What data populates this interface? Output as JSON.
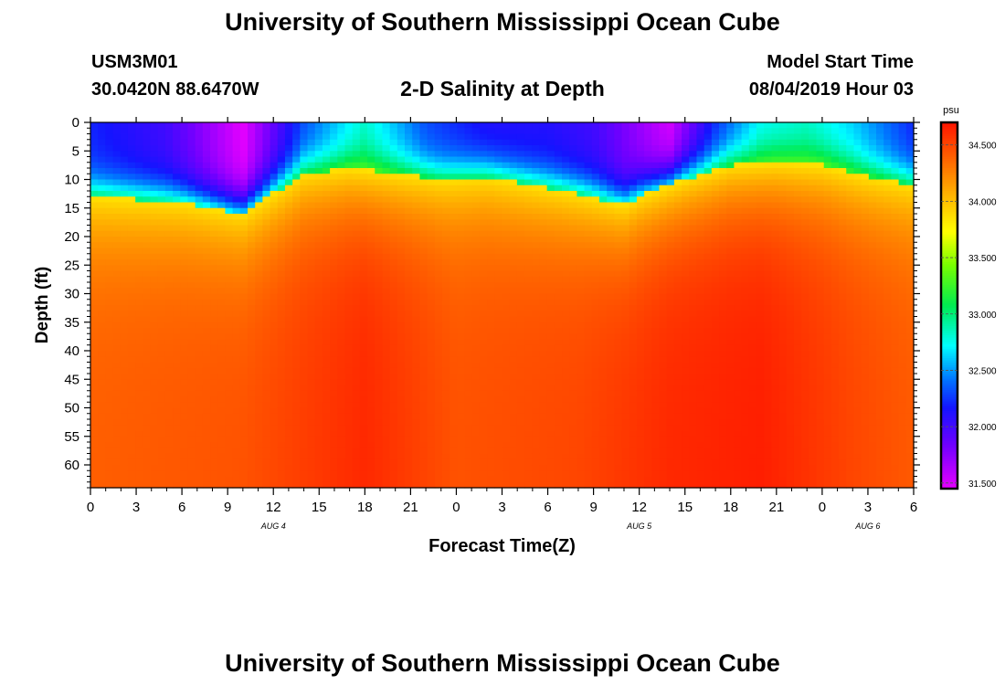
{
  "header": {
    "title": "University of Southern Mississippi Ocean Cube",
    "station": "USM3M01",
    "location": "30.0420N 88.6470W",
    "plot_title": "2-D Salinity at Depth",
    "start_label": "Model Start Time",
    "start_value": "08/04/2019 Hour 03"
  },
  "footer": {
    "title": "University of Southern Mississippi Ocean Cube"
  },
  "chart_data": {
    "type": "heatmap",
    "title": "2-D Salinity at Depth",
    "xlabel": "Forecast Time(Z)",
    "ylabel": "Depth (ft)",
    "x_range_hours": [
      0,
      54
    ],
    "y_range_ft": [
      0,
      64
    ],
    "x_tick_labels": [
      "0",
      "3",
      "6",
      "9",
      "12",
      "15",
      "18",
      "21",
      "0",
      "3",
      "6",
      "9",
      "12",
      "15",
      "18",
      "21",
      "0",
      "3",
      "6"
    ],
    "y_tick_labels": [
      "0",
      "5",
      "10",
      "15",
      "20",
      "25",
      "30",
      "35",
      "40",
      "45",
      "50",
      "55",
      "60"
    ],
    "date_labels": [
      {
        "text": "AUG 4",
        "hour": 12
      },
      {
        "text": "AUG 5",
        "hour": 36
      },
      {
        "text": "AUG 6",
        "hour": 51
      }
    ],
    "colorbar": {
      "unit": "psu",
      "min": 31.45,
      "max": 34.7,
      "tick_labels": [
        "34.500",
        "34.000",
        "33.500",
        "33.000",
        "32.500",
        "32.000",
        "31.500"
      ]
    },
    "halocline_depth_ft": [
      {
        "hour": 0,
        "depth": 13.0
      },
      {
        "hour": 3,
        "depth": 13.5
      },
      {
        "hour": 6,
        "depth": 14.0
      },
      {
        "hour": 8,
        "depth": 15.0
      },
      {
        "hour": 10,
        "depth": 16.0
      },
      {
        "hour": 12,
        "depth": 12.5
      },
      {
        "hour": 14,
        "depth": 9.0
      },
      {
        "hour": 17,
        "depth": 8.0
      },
      {
        "hour": 20,
        "depth": 9.0
      },
      {
        "hour": 23,
        "depth": 10.0
      },
      {
        "hour": 26,
        "depth": 9.5
      },
      {
        "hour": 29,
        "depth": 11.0
      },
      {
        "hour": 32,
        "depth": 12.5
      },
      {
        "hour": 35,
        "depth": 14.5
      },
      {
        "hour": 36,
        "depth": 13.0
      },
      {
        "hour": 39,
        "depth": 10.0
      },
      {
        "hour": 42,
        "depth": 7.5
      },
      {
        "hour": 45,
        "depth": 7.0
      },
      {
        "hour": 48,
        "depth": 7.5
      },
      {
        "hour": 51,
        "depth": 9.5
      },
      {
        "hour": 54,
        "depth": 11.0
      }
    ],
    "surface_min_psu": [
      {
        "hour": 0,
        "value": 32.2
      },
      {
        "hour": 5,
        "value": 32.0
      },
      {
        "hour": 10,
        "value": 31.45
      },
      {
        "hour": 14,
        "value": 32.3
      },
      {
        "hour": 18,
        "value": 32.8
      },
      {
        "hour": 22,
        "value": 32.3
      },
      {
        "hour": 26,
        "value": 32.1
      },
      {
        "hour": 30,
        "value": 32.1
      },
      {
        "hour": 33,
        "value": 32.0
      },
      {
        "hour": 38,
        "value": 31.5
      },
      {
        "hour": 41,
        "value": 32.2
      },
      {
        "hour": 44,
        "value": 32.7
      },
      {
        "hour": 47,
        "value": 32.8
      },
      {
        "hour": 50,
        "value": 32.6
      },
      {
        "hour": 54,
        "value": 32.2
      }
    ],
    "deep_max_psu": [
      {
        "hour": 0,
        "value": 34.4
      },
      {
        "hour": 10,
        "value": 34.45
      },
      {
        "hour": 18,
        "value": 34.62
      },
      {
        "hour": 24,
        "value": 34.45
      },
      {
        "hour": 32,
        "value": 34.5
      },
      {
        "hour": 38,
        "value": 34.62
      },
      {
        "hour": 44,
        "value": 34.66
      },
      {
        "hour": 50,
        "value": 34.5
      },
      {
        "hour": 54,
        "value": 34.42
      }
    ]
  }
}
